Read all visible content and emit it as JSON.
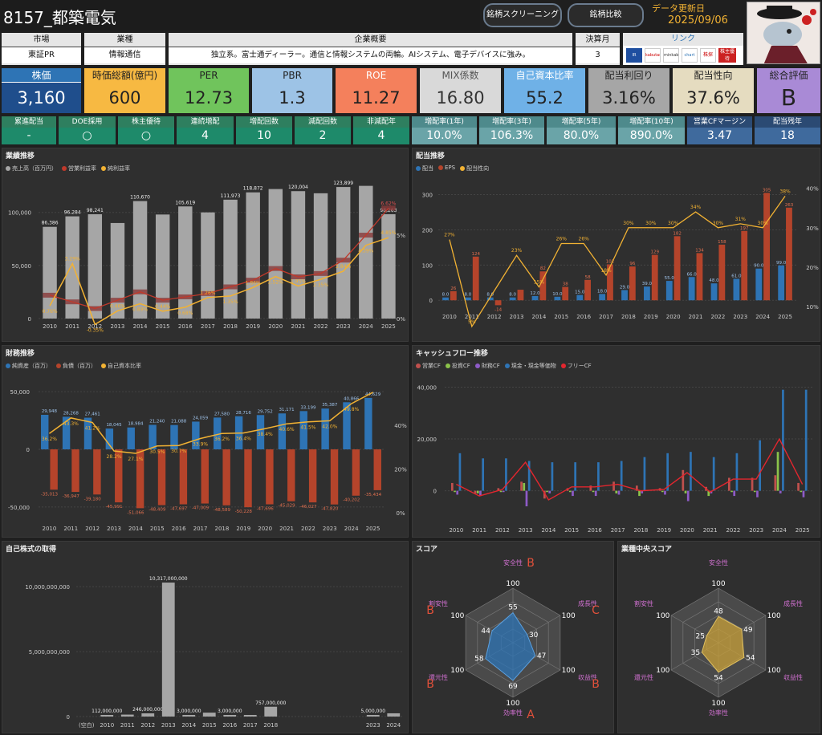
{
  "header": {
    "title": "8157_都築電気",
    "btn_screening": "銘柄スクリーニング",
    "btn_compare": "銘柄比較",
    "update_label": "データ更新日",
    "update_date": "2025/09/06"
  },
  "info": {
    "market_label": "市場",
    "market": "東証PR",
    "industry_label": "業種",
    "industry": "情報通信",
    "overview_label": "企業概要",
    "overview": "独立系。富士通ディーラー。通信と情報システムの両輪。AIシステム、電子デバイスに強み。",
    "fiscal_label": "決算月",
    "fiscal": "3",
    "link_label": "リンク",
    "links": [
      "IR BANK",
      "kabutan",
      "minkabu",
      "chart",
      "株探",
      "株主優待"
    ]
  },
  "kpis": [
    {
      "label": "株価",
      "value": "3,160"
    },
    {
      "label": "時価総額(億円)",
      "value": "600"
    },
    {
      "label": "PER",
      "value": "12.73"
    },
    {
      "label": "PBR",
      "value": "1.3"
    },
    {
      "label": "ROE",
      "value": "11.27"
    },
    {
      "label": "MIX係数",
      "value": "16.80"
    },
    {
      "label": "自己資本比率",
      "value": "55.2"
    },
    {
      "label": "配当利回り",
      "value": "3.16%"
    },
    {
      "label": "配当性向",
      "value": "37.6%"
    },
    {
      "label": "総合評価",
      "value": "B"
    }
  ],
  "subs": [
    {
      "label": "累進配当",
      "value": "-"
    },
    {
      "label": "DOE採用",
      "value": "○"
    },
    {
      "label": "株主優待",
      "value": "○"
    },
    {
      "label": "連続増配",
      "value": "4"
    },
    {
      "label": "増配回数",
      "value": "10"
    },
    {
      "label": "減配回数",
      "value": "2"
    },
    {
      "label": "非減配年",
      "value": "4"
    },
    {
      "label": "増配率(1年)",
      "value": "10.0%"
    },
    {
      "label": "増配率(3年)",
      "value": "106.3%"
    },
    {
      "label": "増配率(5年)",
      "value": "80.0%"
    },
    {
      "label": "増配率(10年)",
      "value": "890.0%"
    },
    {
      "label": "営業CFマージン",
      "value": "3.47"
    },
    {
      "label": "配当残年",
      "value": "18"
    }
  ],
  "colors": {
    "gray": "#a6a6a6",
    "red": "#c0392b",
    "orange": "#f2b233",
    "blue": "#2e74b5",
    "darkred": "#b5442b",
    "green": "#8bc34a",
    "purple": "#8e5bc7",
    "brightred": "#e3262e"
  },
  "charts": {
    "performance": {
      "title": "業績推移",
      "legend": [
        "売上高（百万円）",
        "営業利益率",
        "純利益率"
      ],
      "chart_data": {
        "type": "bar",
        "categories": [
          "2010",
          "2011",
          "2012",
          "2013",
          "2014",
          "2015",
          "2016",
          "2017",
          "2018",
          "2019",
          "2020",
          "2021",
          "2022",
          "2023",
          "2024",
          "2025"
        ],
        "series": [
          {
            "name": "売上高（百万円）",
            "values": [
              86386,
              96284,
              98241,
              90000,
              110670,
              98000,
              105619,
              100000,
              111973,
              118872,
              122000,
              120004,
              118000,
              123899,
              125000,
              98263
            ]
          },
          {
            "name": "営業利益率",
            "values": [
              1.4,
              1.0,
              0.6,
              1.1,
              1.6,
              1.1,
              1.3,
              1.5,
              1.9,
              2.3,
              3.0,
              2.5,
              2.7,
              3.5,
              5.0,
              6.62
            ]
          },
          {
            "name": "純利益率",
            "values": [
              0.76,
              3.29,
              -0.35,
              0.46,
              0.89,
              0.44,
              0.68,
              1.26,
              1.35,
              1.86,
              2.52,
              1.95,
              2.35,
              2.84,
              4.39,
              4.85
            ]
          }
        ],
        "bar_labels": [
          "86,386",
          "96,284",
          "98,241",
          "",
          "110,670",
          "",
          "105,619",
          "",
          "111,973",
          "118,872",
          "",
          "120,004",
          "",
          "123,899",
          "",
          "98,263"
        ],
        "net_labels": [
          "0.76%",
          "3.29%",
          "-0.35%",
          "0.46%",
          "0.89%",
          "0.44%",
          "0.68%",
          "1.26%",
          "1.35%",
          "1.86%",
          "2.52%",
          "1.95%",
          "2.35%",
          "2.84%",
          "4.39%",
          "4.85%"
        ],
        "op_last_label": "6.62%",
        "y_ticks": [
          "0",
          "50,000",
          "100,000"
        ],
        "y2_ticks": [
          "0%",
          "5%"
        ],
        "ylim": [
          0,
          130000
        ]
      }
    },
    "dividend": {
      "title": "配当推移",
      "legend": [
        "配当",
        "EPS",
        "配当性向"
      ],
      "chart_data": {
        "type": "bar",
        "categories": [
          "2010",
          "2011",
          "2012",
          "2013",
          "2014",
          "2015",
          "2016",
          "2017",
          "2018",
          "2019",
          "2020",
          "2021",
          "2022",
          "2023",
          "2024",
          "2025"
        ],
        "series": [
          {
            "name": "配当",
            "values": [
              8.0,
              8.0,
              8.0,
              8.0,
              12.0,
              10.0,
              15.0,
              18.0,
              29.0,
              39.0,
              55.0,
              66.0,
              48.0,
              61.0,
              90.0,
              99.0
            ]
          },
          {
            "name": "EPS",
            "values": [
              26,
              124,
              -14,
              30,
              82,
              38,
              58,
              102,
              96,
              129,
              182,
              134,
              158,
              197,
              305,
              263
            ]
          },
          {
            "name": "配当性向",
            "values": [
              27,
              5,
              null,
              23,
              15,
              26,
              26,
              18,
              30,
              30,
              30,
              34,
              30,
              31,
              30,
              38
            ]
          }
        ],
        "div_labels": [
          "8.0",
          "8.0",
          "8.0",
          "8.0",
          "12.0",
          "10.0",
          "15.0",
          "18.0",
          "29.0",
          "39.0",
          "55.0",
          "66.0",
          "48.0",
          "61.0",
          "90.0",
          "99.0"
        ],
        "eps_labels": [
          "26",
          "124",
          "-14",
          "",
          "82",
          "38",
          "58",
          "102",
          "96",
          "129",
          "182",
          "134",
          "158",
          "197",
          "305",
          "263"
        ],
        "payout_labels": [
          "27%",
          "5%",
          "",
          "23%",
          "15%",
          "26%",
          "26%",
          "18%",
          "30%",
          "30%",
          "30%",
          "34%",
          "30%",
          "31%",
          "30%",
          "38%"
        ],
        "y_ticks": [
          "0",
          "100",
          "200",
          "300"
        ],
        "y2_ticks": [
          "10%",
          "20%",
          "30%",
          "40%"
        ],
        "ylim": [
          -20,
          340
        ]
      }
    },
    "financial": {
      "title": "財務推移",
      "legend": [
        "純資産（百万）",
        "負債（百万）",
        "自己資本比率"
      ],
      "chart_data": {
        "type": "bar",
        "categories": [
          "2010",
          "2011",
          "2012",
          "2013",
          "2014",
          "2015",
          "2016",
          "2017",
          "2018",
          "2019",
          "2020",
          "2021",
          "2022",
          "2023",
          "2024",
          "2025"
        ],
        "series": [
          {
            "name": "純資産（百万）",
            "values": [
              29948,
              28268,
              27461,
              18045,
              18984,
              21240,
              21088,
              24059,
              27580,
              28716,
              29752,
              31171,
              33199,
              35387,
              40866,
              44629
            ]
          },
          {
            "name": "負債（百万）",
            "values": [
              -35013,
              -36947,
              -39180,
              -45991,
              -51066,
              -48409,
              -47697,
              -47009,
              -48589,
              -50228,
              -47696,
              -45029,
              -46027,
              -47820,
              -40202,
              -35434
            ]
          },
          {
            "name": "自己資本比率",
            "values": [
              36.2,
              43.3,
              41.2,
              28.2,
              27.1,
              30.5,
              30.7,
              33.9,
              36.2,
              36.4,
              38.4,
              40.6,
              41.5,
              42.0,
              49.8,
              55.0
            ]
          }
        ],
        "asset_labels": [
          "29,948",
          "28,268",
          "27,461",
          "18,045",
          "18,984",
          "21,240",
          "21,088",
          "24,059",
          "27,580",
          "28,716",
          "29,752",
          "31,171",
          "33,199",
          "35,387",
          "40,866",
          "44,629"
        ],
        "liab_labels": [
          "-35,013",
          "-36,947",
          "-39,180",
          "-45,991",
          "-51,066",
          "-48,409",
          "-47,697",
          "-47,009",
          "-48,589",
          "-50,228",
          "-47,696",
          "-45,029",
          "-46,027",
          "-47,820",
          "-40,202",
          "-35,434"
        ],
        "ratio_labels": [
          "36.2%",
          "43.3%",
          "41.2%",
          "28.2%",
          "27.1%",
          "30.5%",
          "30.7%",
          "33.9%",
          "36.2%",
          "36.4%",
          "38.4%",
          "40.6%",
          "41.5%",
          "42.0%",
          "49.8%",
          ""
        ],
        "y_ticks": [
          "-50,000",
          "0",
          "50,000"
        ],
        "y2_ticks": [
          "0%",
          "20%",
          "40%"
        ],
        "ylim": [
          -55000,
          55000
        ]
      }
    },
    "cashflow": {
      "title": "キャッシュフロー推移",
      "legend": [
        "営業CF",
        "投資CF",
        "財務CF",
        "現金・現金等価物",
        "フリーCF"
      ],
      "chart_data": {
        "type": "bar",
        "categories": [
          "2010",
          "2011",
          "2012",
          "2013",
          "2014",
          "2015",
          "2016",
          "2017",
          "2018",
          "2019",
          "2020",
          "2021",
          "2022",
          "2023",
          "2024",
          "2025"
        ],
        "series": [
          {
            "name": "営業CF",
            "values": [
              3000,
              -1000,
              1000,
              3500,
              -3000,
              1000,
              2000,
              3500,
              2000,
              1000,
              8000,
              1500,
              5000,
              5000,
              6000,
              3000
            ]
          },
          {
            "name": "投資CF",
            "values": [
              -500,
              -1000,
              -500,
              3000,
              -500,
              -500,
              -500,
              -1000,
              -2000,
              -500,
              -1000,
              -2000,
              -500,
              -500,
              15000,
              -500
            ]
          },
          {
            "name": "財務CF",
            "values": [
              -1500,
              -2000,
              -500,
              -6000,
              -1000,
              -2000,
              -2000,
              -1500,
              -1000,
              -1500,
              -4000,
              -1000,
              -2000,
              -2500,
              -1000,
              -2500
            ]
          },
          {
            "name": "現金・現金等価物",
            "values": [
              14500,
              12500,
              12500,
              11500,
              11000,
              11000,
              11000,
              11500,
              13000,
              14500,
              15000,
              13000,
              14500,
              19500,
              39000,
              39000
            ]
          },
          {
            "name": "フリーCF",
            "values": [
              2500,
              -2000,
              500,
              11000,
              -3500,
              1500,
              1500,
              2500,
              0,
              500,
              7000,
              -500,
              4500,
              4500,
              20000,
              2500
            ]
          }
        ],
        "y_ticks": [
          "0",
          "20,000",
          "40,000"
        ],
        "ylim": [
          -6000,
          42000
        ]
      }
    },
    "buyback": {
      "title": "自己株式の取得",
      "chart_data": {
        "type": "bar",
        "categories": [
          "(空白)",
          "2010",
          "2011",
          "2012",
          "2013",
          "2014",
          "2015",
          "2016",
          "2017",
          "2018",
          "2019",
          "2020",
          "2021",
          "2022",
          "2023",
          "2024"
        ],
        "values": [
          0,
          112000000,
          150000000,
          246000000,
          10317000000,
          3000000,
          300000000,
          3000000,
          10000000,
          757000000,
          0,
          0,
          0,
          0,
          5000000,
          250000000
        ],
        "value_labels": [
          "",
          "112,000,000",
          "",
          "246,000,000",
          "10,317,000,000",
          "3,000,000",
          "",
          "3,000,000",
          "",
          "757,000,000",
          "",
          "",
          "",
          "",
          "5,000,000",
          ""
        ],
        "x_labels": [
          "(空白)",
          "2010",
          "2011",
          "2012",
          "2013",
          "2014",
          "2015",
          "2016",
          "2017",
          "2018",
          "",
          "",
          "",
          "",
          "2023",
          "2024"
        ],
        "y_ticks": [
          "0",
          "5,000,000,000",
          "10,000,000,000"
        ],
        "ylim": [
          0,
          11000000000
        ]
      }
    },
    "score": {
      "title": "スコア",
      "axes": [
        "安全性",
        "成長性",
        "収益性",
        "効率性",
        "還元性",
        "割安性"
      ],
      "grades": [
        "B",
        "C",
        "B",
        "A",
        "B",
        "B"
      ],
      "max_label": "100",
      "chart_data": {
        "type": "radar",
        "values": [
          55,
          30,
          47,
          69,
          58,
          44
        ],
        "max": 100
      }
    },
    "industry_score": {
      "title": "業種中央スコア",
      "axes": [
        "安全性",
        "成長性",
        "収益性",
        "効率性",
        "還元性",
        "割安性"
      ],
      "max_label": "100",
      "chart_data": {
        "type": "radar",
        "values": [
          48,
          49,
          54,
          54,
          35,
          25
        ],
        "max": 100
      }
    }
  }
}
